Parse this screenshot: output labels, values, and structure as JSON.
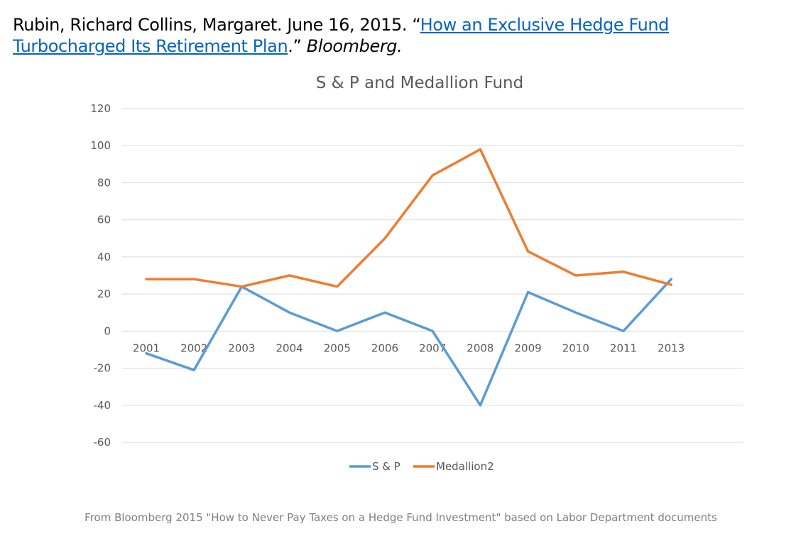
{
  "citation": {
    "prefix": "Rubin, Richard Collins, Margaret. June 16, 2015. “",
    "link_text": "How an Exclusive Hedge Fund Turbocharged Its Retirement Plan",
    "suffix": ".” ",
    "publication": "Bloomberg."
  },
  "chart_data": {
    "type": "line",
    "title": "S & P and Medallion Fund",
    "xlabel": "",
    "ylabel": "",
    "categories": [
      "2001",
      "2002",
      "2003",
      "2004",
      "2005",
      "2006",
      "2007",
      "2008",
      "2009",
      "2010",
      "2011",
      "2013"
    ],
    "series": [
      {
        "name": "S & P",
        "color": "#5b9bd5",
        "values": [
          -12,
          -21,
          24,
          10,
          0,
          10,
          0,
          -40,
          21,
          10,
          0,
          28
        ]
      },
      {
        "name": "Medallion2",
        "color": "#ed7d31",
        "values": [
          28,
          28,
          24,
          30,
          24,
          50,
          84,
          98,
          43,
          30,
          32,
          25
        ]
      }
    ],
    "ylim": [
      -60,
      120
    ],
    "yticks": [
      -60,
      -40,
      -20,
      0,
      20,
      40,
      60,
      80,
      100,
      120
    ],
    "grid": true,
    "legend": "bottom"
  },
  "footer": {
    "source_text": "From Bloomberg 2015 \"How to Never Pay Taxes on a Hedge Fund Investment\" based on Labor Department documents"
  }
}
